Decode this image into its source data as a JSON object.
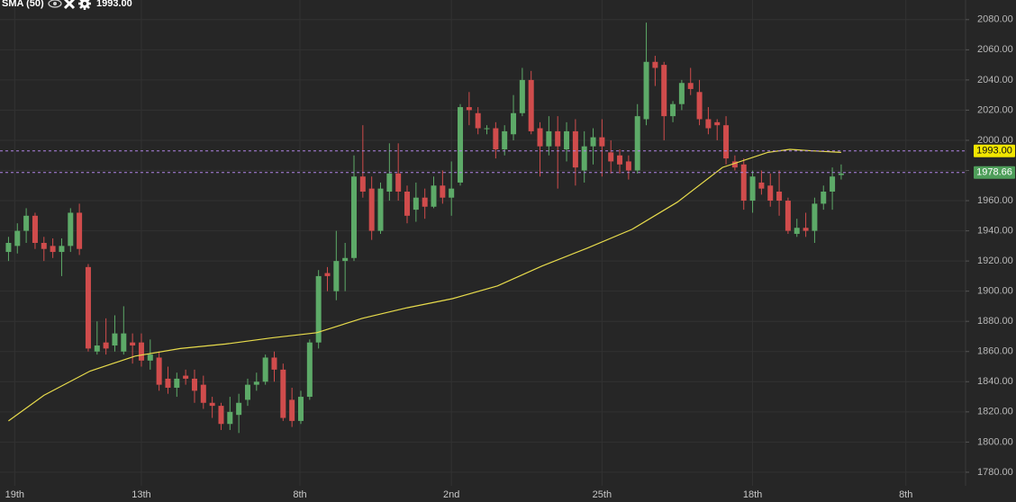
{
  "chart_data": {
    "type": "candlestick",
    "x": [
      0,
      1,
      2,
      3,
      4,
      5,
      6,
      7,
      8,
      9,
      10,
      11,
      12,
      13,
      14,
      15,
      16,
      17,
      18,
      19,
      20,
      21,
      22,
      23,
      24,
      25,
      26,
      27,
      28,
      29,
      30,
      31,
      32,
      33,
      34,
      35,
      36,
      37,
      38,
      39,
      40,
      41,
      42,
      43,
      44,
      45,
      46,
      47,
      48,
      49,
      50,
      51,
      52,
      53,
      54,
      55,
      56,
      57,
      58,
      59,
      60,
      61,
      62,
      63,
      64,
      65,
      66,
      67,
      68,
      69,
      70,
      71,
      72,
      73,
      74,
      75,
      76,
      77,
      78,
      79,
      80,
      81,
      82,
      83,
      84,
      85,
      86,
      87,
      88,
      89,
      90,
      91,
      92,
      93,
      94
    ],
    "open": [
      1926,
      1930,
      1940,
      1950,
      1932,
      1930,
      1926,
      1930,
      1952,
      1916,
      1860,
      1866,
      1864,
      1860,
      1866,
      1866,
      1854,
      1856,
      1842,
      1836,
      1844,
      1842,
      1838,
      1826,
      1824,
      1812,
      1818,
      1828,
      1838,
      1840,
      1856,
      1848,
      1828,
      1814,
      1830,
      1866,
      1912,
      1900,
      1920,
      1922,
      1976,
      1968,
      1940,
      1966,
      1978,
      1966,
      1954,
      1962,
      1956,
      1970,
      1962,
      1972,
      2022,
      2018,
      2008,
      2008,
      1994,
      2004,
      2018,
      2040,
      2008,
      1996,
      2006,
      1994,
      2006,
      1980,
      1996,
      2002,
      1992,
      1990,
      1986,
      1980,
      2014,
      2052,
      2050,
      2016,
      2024,
      2038,
      2032,
      2014,
      2012,
      2010,
      1986,
      1984,
      1960,
      1972,
      1970,
      1966,
      1960,
      1938,
      1942,
      1940,
      1958,
      1966,
      1977
    ],
    "high": [
      1936,
      1945,
      1955,
      1952,
      1936,
      1935,
      1935,
      1955,
      1958,
      1918,
      1880,
      1882,
      1884,
      1890,
      1872,
      1872,
      1868,
      1860,
      1850,
      1846,
      1848,
      1848,
      1844,
      1830,
      1826,
      1830,
      1832,
      1842,
      1846,
      1858,
      1860,
      1852,
      1836,
      1834,
      1868,
      1914,
      1916,
      1940,
      1932,
      1990,
      2010,
      1976,
      1972,
      1998,
      1998,
      1970,
      1972,
      1968,
      1976,
      1980,
      1986,
      2024,
      2032,
      2022,
      2010,
      2012,
      2010,
      2030,
      2048,
      2046,
      2012,
      2016,
      2016,
      2012,
      2014,
      2006,
      2008,
      2014,
      2000,
      1994,
      1990,
      2024,
      2078,
      2056,
      2052,
      2026,
      2040,
      2048,
      2040,
      2022,
      2014,
      2016,
      1990,
      1988,
      1980,
      1980,
      1978,
      1980,
      1962,
      1948,
      1952,
      1962,
      1970,
      1982,
      1984
    ],
    "low": [
      1920,
      1925,
      1932,
      1928,
      1920,
      1922,
      1910,
      1926,
      1924,
      1860,
      1858,
      1858,
      1860,
      1858,
      1852,
      1850,
      1848,
      1834,
      1832,
      1830,
      1838,
      1826,
      1822,
      1816,
      1808,
      1808,
      1806,
      1824,
      1834,
      1838,
      1840,
      1814,
      1810,
      1812,
      1828,
      1862,
      1900,
      1894,
      1900,
      1920,
      1962,
      1934,
      1938,
      1960,
      1960,
      1945,
      1946,
      1948,
      1955,
      1958,
      1950,
      1970,
      2010,
      2004,
      2004,
      1988,
      1990,
      2000,
      2016,
      2004,
      1976,
      1990,
      1968,
      1986,
      1970,
      1972,
      1984,
      1976,
      1978,
      1978,
      1974,
      1978,
      2010,
      2036,
      2000,
      2012,
      2020,
      2030,
      2010,
      2004,
      2000,
      1984,
      1980,
      1954,
      1952,
      1964,
      1956,
      1950,
      1938,
      1936,
      1936,
      1932,
      1954,
      1954,
      1974
    ],
    "close": [
      1932,
      1940,
      1950,
      1932,
      1928,
      1926,
      1930,
      1952,
      1928,
      1862,
      1864,
      1862,
      1872,
      1872,
      1864,
      1854,
      1858,
      1838,
      1836,
      1842,
      1842,
      1834,
      1826,
      1824,
      1812,
      1820,
      1826,
      1838,
      1840,
      1856,
      1848,
      1816,
      1814,
      1830,
      1866,
      1910,
      1910,
      1920,
      1922,
      1976,
      1966,
      1940,
      1968,
      1978,
      1966,
      1950,
      1962,
      1956,
      1970,
      1962,
      1968,
      2022,
      2020,
      2008,
      2008,
      1994,
      2006,
      2018,
      2040,
      2006,
      1996,
      2006,
      1996,
      2006,
      1982,
      1996,
      2002,
      1996,
      1986,
      1984,
      1980,
      2016,
      2052,
      2048,
      2016,
      2024,
      2038,
      2034,
      2014,
      2008,
      2010,
      1988,
      1982,
      1960,
      1976,
      1968,
      1960,
      1960,
      1940,
      1942,
      1940,
      1958,
      1966,
      1976,
      1978
    ],
    "up_color": "#5daa68",
    "down_color": "#d04c4c",
    "sma": {
      "name": "SMA (50)",
      "current_label": "1993.00",
      "color": "#e8dc4c",
      "x": [
        0,
        4,
        9.2,
        14.3,
        19.4,
        24.5,
        29.6,
        34.8,
        39.9,
        45,
        50.1,
        55.2,
        60.2,
        65.3,
        70.4,
        75.5,
        80.6,
        85.7,
        88.2,
        90.8,
        94
      ],
      "values": [
        1814,
        1831,
        1847,
        1857,
        1862,
        1865,
        1869,
        1872.5,
        1882,
        1889,
        1895,
        1903.5,
        1916.6,
        1928.5,
        1941,
        1959,
        1982,
        1992,
        1994,
        1993,
        1992
      ]
    },
    "price_lines": [
      {
        "value": 1993,
        "label": "1993.00",
        "color": "#f2e600",
        "text_color": "#111111"
      },
      {
        "value": 1978.66,
        "label": "1978.66",
        "color": "#4e9e5a",
        "text_color": "#ffffff"
      }
    ],
    "price_line_color": "#b084e6",
    "xlim": [
      -0.96,
      108.04
    ],
    "ylim": [
      1771,
      2093
    ],
    "xticks": [
      {
        "value": 0.7,
        "label": "19th"
      },
      {
        "value": 15,
        "label": "13th"
      },
      {
        "value": 32.9,
        "label": "8th"
      },
      {
        "value": 50,
        "label": "2nd"
      },
      {
        "value": 67,
        "label": "25th"
      },
      {
        "value": 84,
        "label": "18th"
      },
      {
        "value": 101.3,
        "label": "8th"
      }
    ],
    "yticks": [
      {
        "value": 1780,
        "label": "1780.00"
      },
      {
        "value": 1800,
        "label": "1800.00"
      },
      {
        "value": 1820,
        "label": "1820.00"
      },
      {
        "value": 1840,
        "label": "1840.00"
      },
      {
        "value": 1860,
        "label": "1860.00"
      },
      {
        "value": 1880,
        "label": "1880.00"
      },
      {
        "value": 1900,
        "label": "1900.00"
      },
      {
        "value": 1920,
        "label": "1920.00"
      },
      {
        "value": 1940,
        "label": "1940.00"
      },
      {
        "value": 1960,
        "label": "1960.00"
      },
      {
        "value": 1980,
        "label": "1980.00"
      },
      {
        "value": 2000,
        "label": "2000.00"
      },
      {
        "value": 2020,
        "label": "2020.00"
      },
      {
        "value": 2040,
        "label": "2040.00"
      },
      {
        "value": 2060,
        "label": "2060.00"
      },
      {
        "value": 2080,
        "label": "2080.00"
      }
    ],
    "grid": true
  }
}
